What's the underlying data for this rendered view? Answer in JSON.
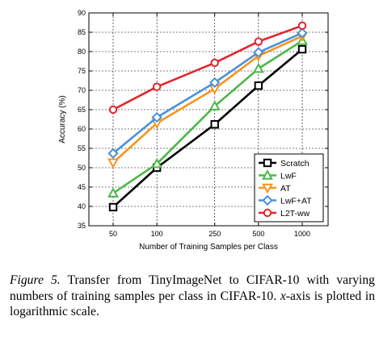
{
  "chart_data": {
    "type": "line",
    "x": [
      50,
      100,
      250,
      500,
      1000
    ],
    "x_tick_labels": [
      "50",
      "100",
      "250",
      "500",
      "1000"
    ],
    "x_scale": "log",
    "xlabel": "Number of Training Samples per Class",
    "ylabel": "Accuracy (%)",
    "ylim": [
      35,
      90
    ],
    "y_ticks": [
      35,
      40,
      45,
      50,
      55,
      60,
      65,
      70,
      75,
      80,
      85,
      90
    ],
    "grid": true,
    "legend_placement": "bottom-right",
    "series": [
      {
        "name": "Scratch",
        "color": "#000000",
        "marker": "square",
        "values": [
          39.8,
          50.0,
          61.2,
          71.2,
          80.6
        ]
      },
      {
        "name": "LwF",
        "color": "#4db848",
        "marker": "triangle-up",
        "values": [
          43.4,
          51.0,
          65.9,
          75.6,
          82.8
        ]
      },
      {
        "name": "AT",
        "color": "#f7941d",
        "marker": "triangle-down",
        "values": [
          51.3,
          61.5,
          70.4,
          78.9,
          84.0
        ]
      },
      {
        "name": "LwF+AT",
        "color": "#4a90d9",
        "marker": "diamond",
        "values": [
          53.7,
          63.0,
          72.0,
          79.8,
          84.8
        ]
      },
      {
        "name": "L2T-ww",
        "color": "#e3262b",
        "marker": "circle",
        "values": [
          65.0,
          70.9,
          77.1,
          82.6,
          86.7
        ]
      }
    ]
  },
  "caption": {
    "label": "Figure 5.",
    "text_before_math": " Transfer from TinyImageNet to CIFAR-10 with varying numbers of training samples per class in CIFAR-10. ",
    "math": "x",
    "text_after_math": "-axis is plotted in logarithmic scale."
  }
}
